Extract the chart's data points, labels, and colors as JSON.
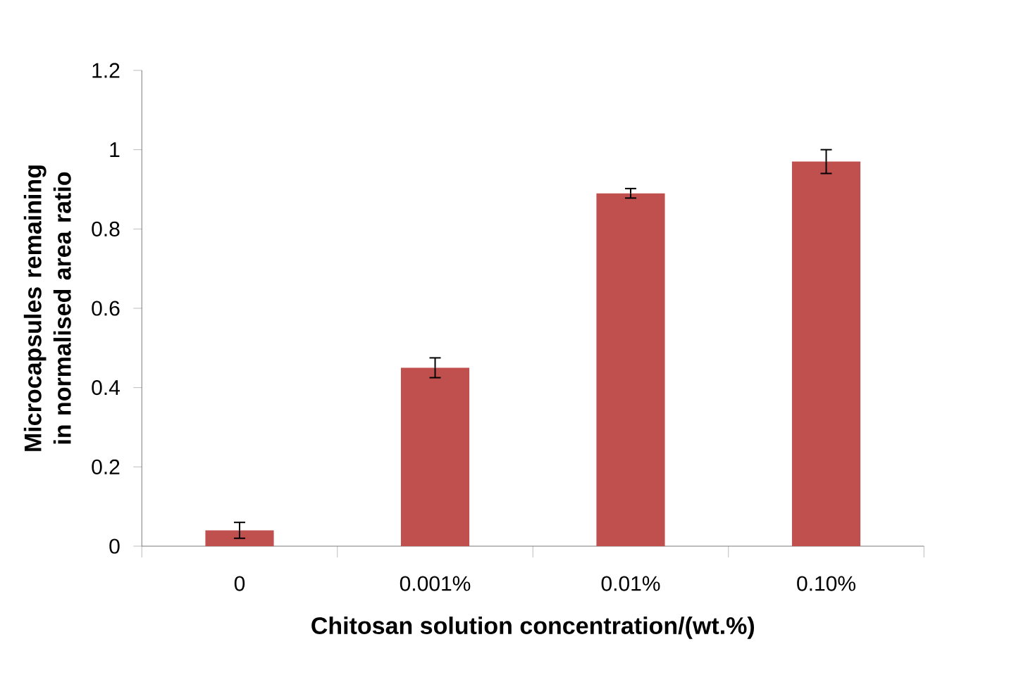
{
  "chart_data": {
    "type": "bar",
    "xlabel": "Chitosan solution concentration/(wt.%)",
    "ylabel": "Microcapsules remaining in normalised area ratio",
    "categories": [
      "0",
      "0.001%",
      "0.01%",
      "0.10%"
    ],
    "values": [
      0.04,
      0.45,
      0.89,
      0.97
    ],
    "errors": [
      0.02,
      0.025,
      0.012,
      0.03
    ],
    "color": "#c0504d",
    "ylim": [
      0,
      1.2
    ],
    "yticks": [
      0,
      0.2,
      0.4,
      0.6,
      0.8,
      1,
      1.2
    ]
  }
}
